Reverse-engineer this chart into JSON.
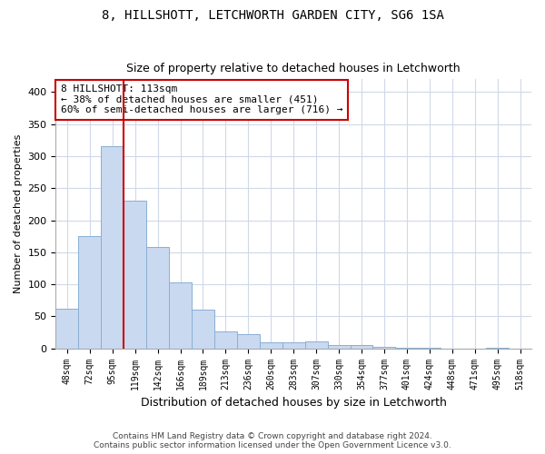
{
  "title1": "8, HILLSHOTT, LETCHWORTH GARDEN CITY, SG6 1SA",
  "title2": "Size of property relative to detached houses in Letchworth",
  "xlabel": "Distribution of detached houses by size in Letchworth",
  "ylabel": "Number of detached properties",
  "categories": [
    "48sqm",
    "72sqm",
    "95sqm",
    "119sqm",
    "142sqm",
    "166sqm",
    "189sqm",
    "213sqm",
    "236sqm",
    "260sqm",
    "283sqm",
    "307sqm",
    "330sqm",
    "354sqm",
    "377sqm",
    "401sqm",
    "424sqm",
    "448sqm",
    "471sqm",
    "495sqm",
    "518sqm"
  ],
  "values": [
    62,
    175,
    315,
    230,
    158,
    103,
    60,
    27,
    22,
    10,
    10,
    11,
    5,
    5,
    2,
    1,
    1,
    0,
    0,
    1,
    0
  ],
  "bar_color": "#c9d9f0",
  "bar_edge_color": "#89afd4",
  "vline_color": "#cc0000",
  "annotation_text": "8 HILLSHOTT: 113sqm\n← 38% of detached houses are smaller (451)\n60% of semi-detached houses are larger (716) →",
  "annotation_box_color": "#ffffff",
  "annotation_box_edge_color": "#cc0000",
  "ylim": [
    0,
    420
  ],
  "yticks": [
    0,
    50,
    100,
    150,
    200,
    250,
    300,
    350,
    400
  ],
  "footer": "Contains HM Land Registry data © Crown copyright and database right 2024.\nContains public sector information licensed under the Open Government Licence v3.0.",
  "bg_color": "#ffffff",
  "grid_color": "#d0d8e8"
}
